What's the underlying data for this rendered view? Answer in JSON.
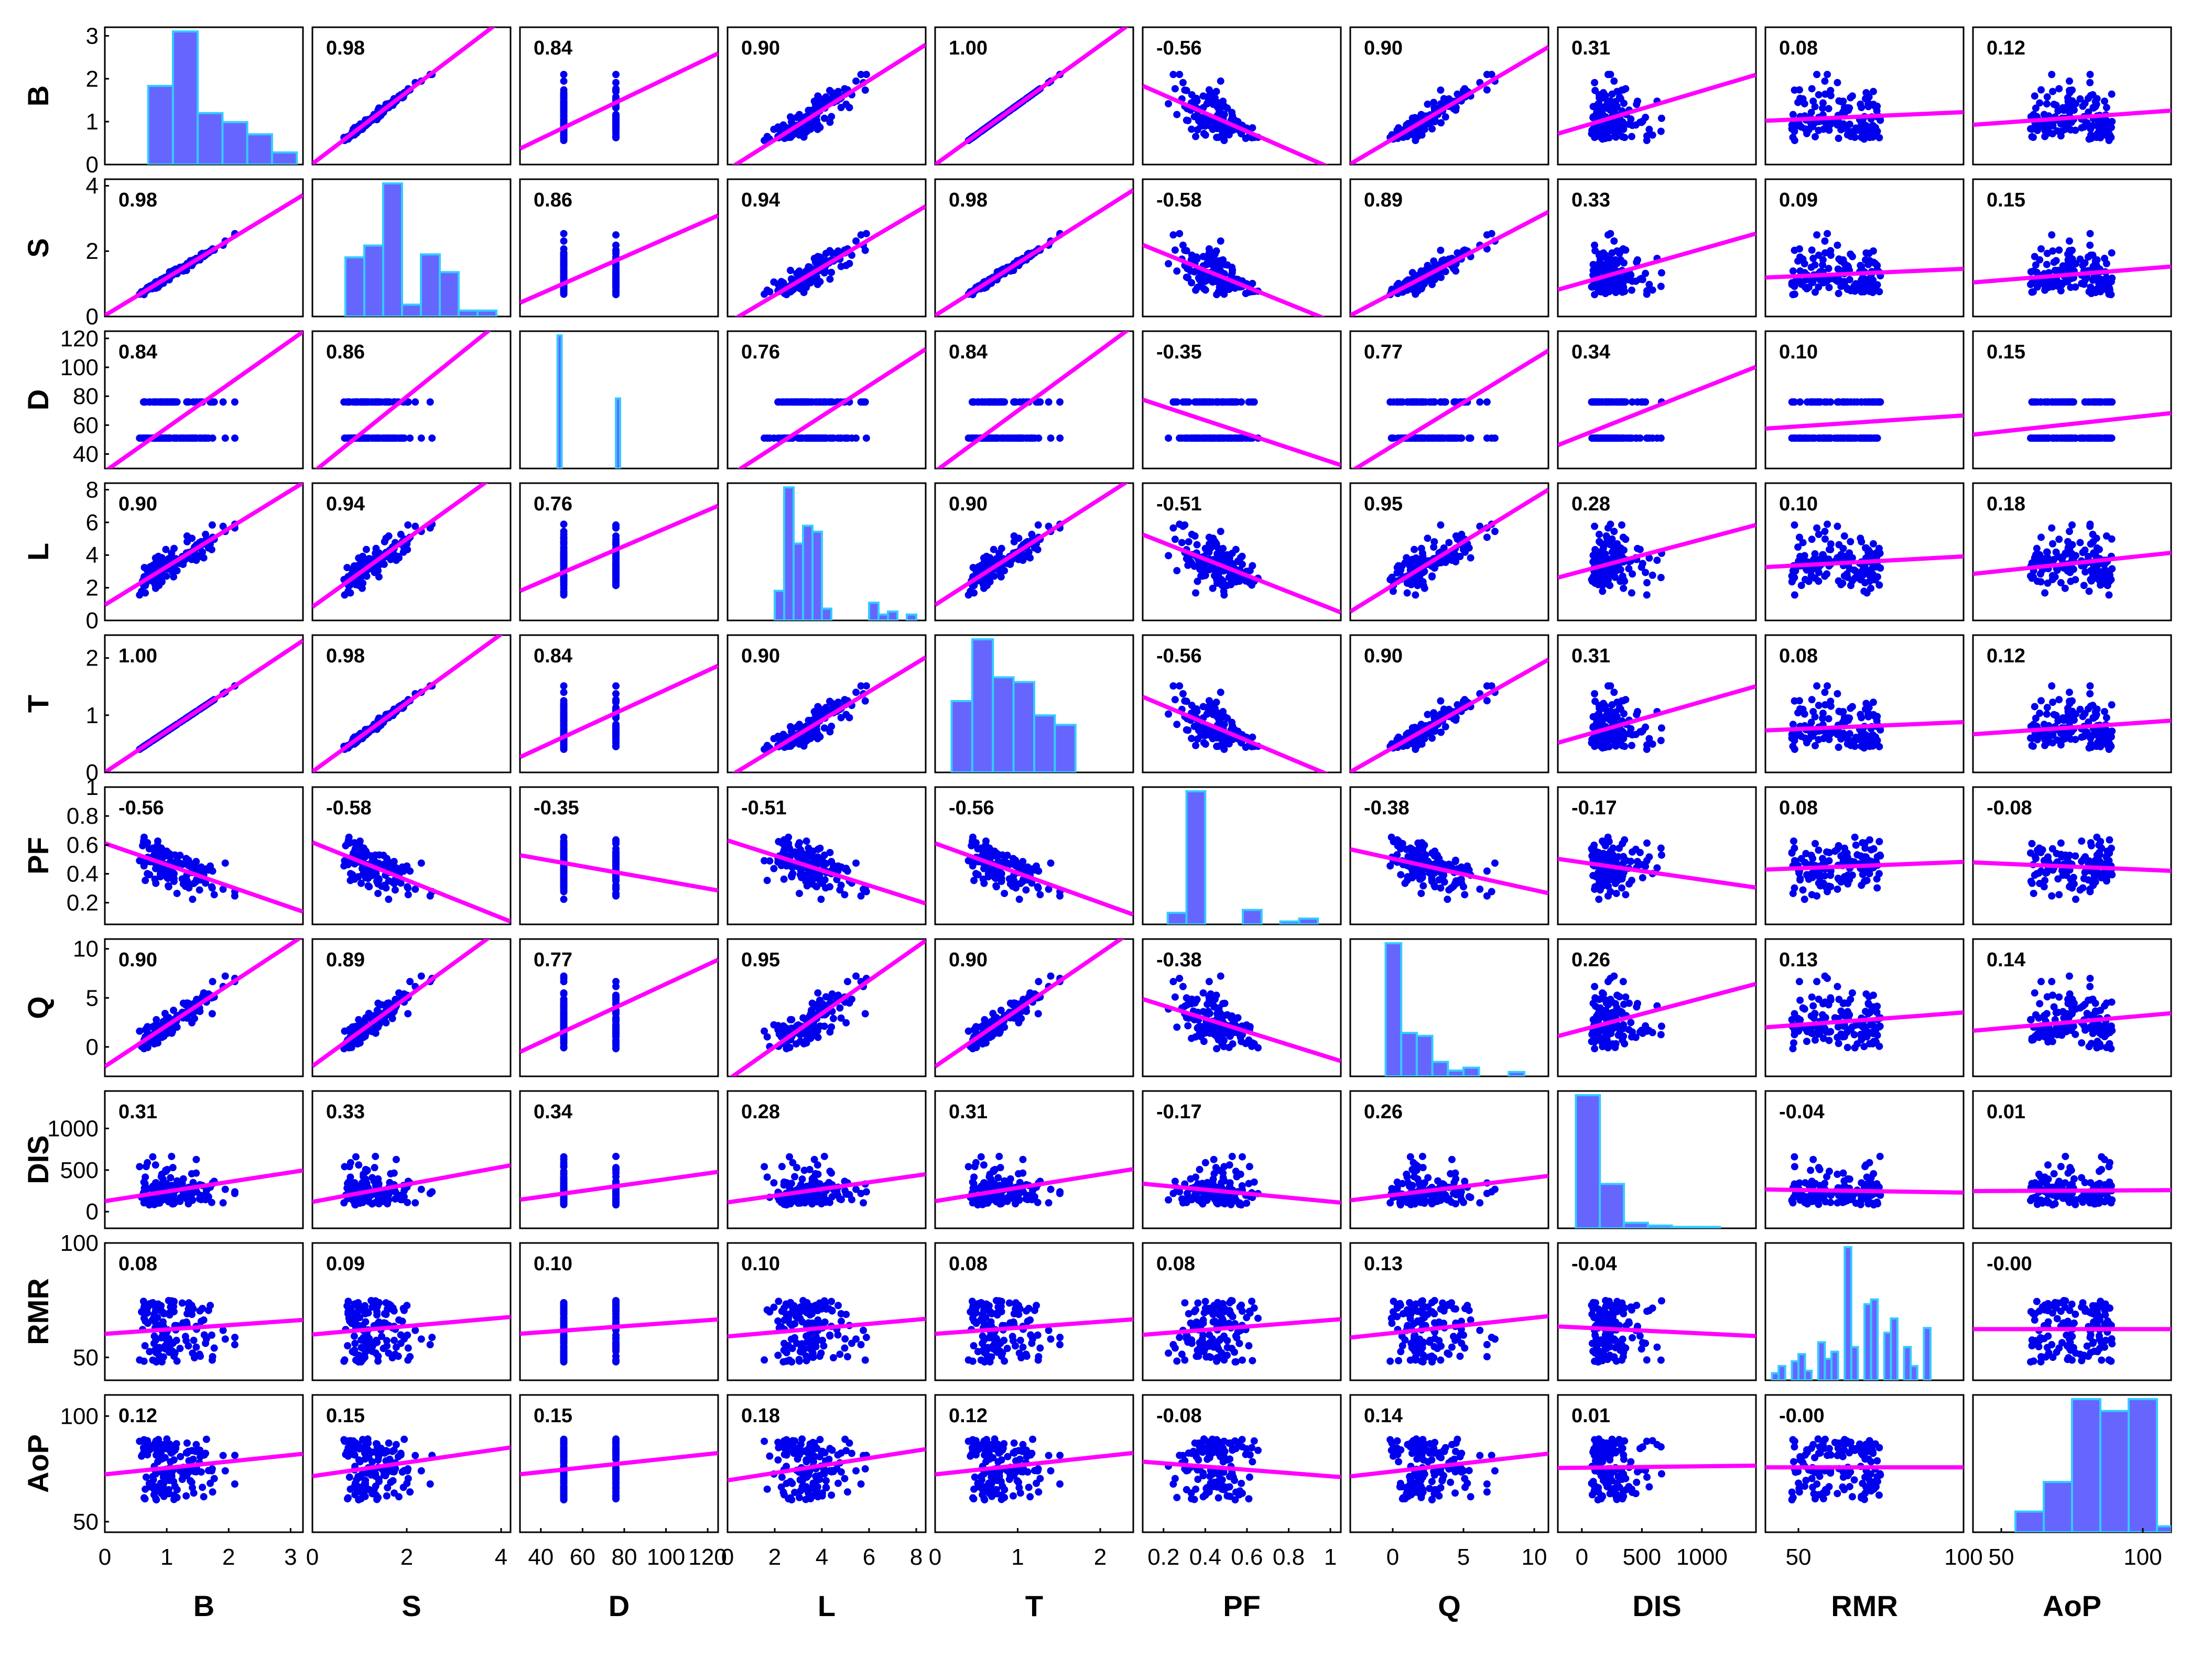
{
  "chart_data": {
    "type": "scatter-matrix",
    "description_of_panels": "off-diagonal: scatter with least-squares fit line and Pearson r; diagonal: histogram",
    "variables": [
      "B",
      "S",
      "D",
      "L",
      "T",
      "PF",
      "Q",
      "DIS",
      "RMR",
      "AoP"
    ],
    "x_axis": {
      "B": {
        "range": [
          0,
          3.2
        ],
        "ticks": [
          "0",
          "1",
          "2",
          "3"
        ],
        "tick_values": [
          0,
          1,
          2,
          3
        ]
      },
      "S": {
        "range": [
          0,
          4.2
        ],
        "ticks": [
          "0",
          "2",
          "4"
        ],
        "tick_values": [
          0,
          2,
          4
        ]
      },
      "D": {
        "range": [
          30,
          125
        ],
        "ticks": [
          "40",
          "60",
          "80",
          "100",
          "120"
        ],
        "tick_values": [
          40,
          60,
          80,
          100,
          120
        ]
      },
      "L": {
        "range": [
          0,
          8.4
        ],
        "ticks": [
          "0",
          "2",
          "4",
          "6",
          "8"
        ],
        "tick_values": [
          0,
          2,
          4,
          6,
          8
        ]
      },
      "T": {
        "range": [
          0,
          2.4
        ],
        "ticks": [
          "0",
          "1",
          "2"
        ],
        "tick_values": [
          0,
          1,
          2
        ]
      },
      "PF": {
        "range": [
          0.1,
          1.05
        ],
        "ticks": [
          "0.2",
          "0.4",
          "0.6",
          "0.8",
          "1"
        ],
        "tick_values": [
          0.2,
          0.4,
          0.6,
          0.8,
          1.0
        ]
      },
      "Q": {
        "range": [
          -3,
          11
        ],
        "ticks": [
          "0",
          "5",
          "10"
        ],
        "tick_values": [
          0,
          5,
          10
        ]
      },
      "DIS": {
        "range": [
          -200,
          1450
        ],
        "ticks": [
          "0",
          "500",
          "1000"
        ],
        "tick_values": [
          0,
          500,
          1000
        ]
      },
      "RMR": {
        "range": [
          40,
          100
        ],
        "ticks": [
          "50",
          "100"
        ],
        "tick_values": [
          50,
          100
        ]
      },
      "AoP": {
        "range": [
          40,
          110
        ],
        "ticks": [
          "50",
          "100"
        ],
        "tick_values": [
          50,
          100
        ]
      }
    },
    "y_axis": {
      "B": {
        "range": [
          0,
          3.2
        ],
        "ticks": [
          "0",
          "1",
          "2",
          "3"
        ],
        "tick_values": [
          0,
          1,
          2,
          3
        ]
      },
      "S": {
        "range": [
          0,
          4.2
        ],
        "ticks": [
          "0",
          "2",
          "4"
        ],
        "tick_values": [
          0,
          2,
          4
        ]
      },
      "D": {
        "range": [
          30,
          125
        ],
        "ticks": [
          "40",
          "60",
          "80",
          "100",
          "120"
        ],
        "tick_values": [
          40,
          60,
          80,
          100,
          120
        ]
      },
      "L": {
        "range": [
          0,
          8.4
        ],
        "ticks": [
          "0",
          "2",
          "4",
          "6",
          "8"
        ],
        "tick_values": [
          0,
          2,
          4,
          6,
          8
        ]
      },
      "T": {
        "range": [
          0,
          2.4
        ],
        "ticks": [
          "0",
          "1",
          "2"
        ],
        "tick_values": [
          0,
          1,
          2
        ]
      },
      "PF": {
        "range": [
          0.05,
          1.0
        ],
        "ticks": [
          "0.2",
          "0.4",
          "0.6",
          "0.8",
          "1"
        ],
        "tick_values": [
          0.2,
          0.4,
          0.6,
          0.8,
          1.0
        ]
      },
      "Q": {
        "range": [
          -3,
          11
        ],
        "ticks": [
          "0",
          "5",
          "10"
        ],
        "tick_values": [
          0,
          5,
          10
        ]
      },
      "DIS": {
        "range": [
          -200,
          1450
        ],
        "ticks": [
          "0",
          "500",
          "1000"
        ],
        "tick_values": [
          0,
          500,
          1000
        ]
      },
      "RMR": {
        "range": [
          40,
          100
        ],
        "ticks": [
          "50",
          "100"
        ],
        "tick_values": [
          50,
          100
        ]
      },
      "AoP": {
        "range": [
          45,
          110
        ],
        "ticks": [
          "50",
          "100"
        ],
        "tick_values": [
          50,
          100
        ]
      }
    },
    "correlations": [
      [
        "",
        "0.98",
        "0.84",
        "0.90",
        "1.00",
        "-0.56",
        "0.90",
        "0.31",
        "0.08",
        "0.12"
      ],
      [
        "0.98",
        "",
        "0.86",
        "0.94",
        "0.98",
        "-0.58",
        "0.89",
        "0.33",
        "0.09",
        "0.15"
      ],
      [
        "0.84",
        "0.86",
        "",
        "0.76",
        "0.84",
        "-0.35",
        "0.77",
        "0.34",
        "0.10",
        "0.15"
      ],
      [
        "0.90",
        "0.94",
        "0.76",
        "",
        "0.90",
        "-0.51",
        "0.95",
        "0.28",
        "0.10",
        "0.18"
      ],
      [
        "1.00",
        "0.98",
        "0.84",
        "0.90",
        "",
        "-0.56",
        "0.90",
        "0.31",
        "0.08",
        "0.12"
      ],
      [
        "-0.56",
        "-0.58",
        "-0.35",
        "-0.51",
        "-0.56",
        "",
        "-0.38",
        "-0.17",
        "0.08",
        "-0.08"
      ],
      [
        "0.90",
        "0.89",
        "0.77",
        "0.95",
        "0.90",
        "-0.38",
        "",
        "0.26",
        "0.13",
        "0.14"
      ],
      [
        "0.31",
        "0.33",
        "0.34",
        "0.28",
        "0.31",
        "-0.17",
        "0.26",
        "",
        "-0.04",
        "0.01"
      ],
      [
        "0.08",
        "0.09",
        "0.10",
        "0.10",
        "0.08",
        "0.08",
        "0.13",
        "-0.04",
        "",
        "-0.00"
      ],
      [
        "0.12",
        "0.15",
        "0.15",
        "0.18",
        "0.12",
        "-0.08",
        "0.14",
        "0.01",
        "-0.00",
        ""
      ]
    ],
    "histograms": {
      "B": {
        "edges": [
          0.7,
          1.1,
          1.5,
          1.9,
          2.3,
          2.7,
          3.1
        ],
        "counts": [
          52,
          88,
          34,
          28,
          20,
          8
        ]
      },
      "S": {
        "edges": [
          0.7,
          1.1,
          1.5,
          1.9,
          2.3,
          2.7,
          3.1,
          3.5,
          3.9
        ],
        "counts": [
          40,
          48,
          90,
          8,
          42,
          30,
          4,
          4
        ]
      },
      "D": {
        "edges": [
          48,
          50,
          52,
          74,
          76,
          78
        ],
        "counts": [
          95,
          0,
          0,
          0,
          50
        ]
      },
      "L": {
        "edges": [
          2.0,
          2.4,
          2.8,
          3.2,
          3.6,
          4.0,
          4.4,
          4.8,
          5.2,
          5.6,
          6.0,
          6.4,
          6.8,
          7.2,
          7.6,
          8.0
        ],
        "counts": [
          20,
          90,
          52,
          64,
          60,
          8,
          0,
          0,
          0,
          0,
          12,
          4,
          6,
          0,
          4
        ]
      },
      "T": {
        "edges": [
          0.2,
          0.45,
          0.7,
          0.95,
          1.2,
          1.45,
          1.7
        ],
        "counts": [
          30,
          56,
          40,
          38,
          24,
          20
        ]
      },
      "PF": {
        "edges": [
          0.22,
          0.31,
          0.4,
          0.49,
          0.58,
          0.67,
          0.76,
          0.85,
          0.94
        ],
        "counts": [
          8,
          92,
          0,
          0,
          10,
          0,
          2,
          4
        ]
      },
      "Q": {
        "edges": [
          -0.5,
          0.6,
          1.7,
          2.8,
          3.9,
          5.0,
          6.1,
          7.1,
          8.2,
          9.3
        ],
        "counts": [
          92,
          30,
          28,
          10,
          4,
          6,
          0,
          0,
          3
        ]
      },
      "DIS": {
        "edges": [
          -50,
          150,
          350,
          550,
          750,
          950,
          1150,
          1350
        ],
        "counts": [
          96,
          32,
          4,
          2,
          1,
          1,
          0
        ]
      },
      "RMR": {
        "edges": [
          42,
          44,
          46,
          48,
          50,
          52,
          54,
          56,
          58,
          60,
          62,
          64,
          66,
          68,
          70,
          72,
          74,
          76,
          78,
          80,
          82,
          84,
          86,
          88,
          90
        ],
        "counts": [
          3,
          6,
          0,
          8,
          11,
          4,
          0,
          16,
          9,
          12,
          0,
          56,
          14,
          0,
          32,
          34,
          0,
          20,
          26,
          0,
          14,
          6,
          0,
          22
        ]
      },
      "AoP": {
        "edges": [
          55,
          65,
          75,
          85,
          95,
          105,
          115
        ],
        "counts": [
          14,
          34,
          90,
          82,
          90,
          4
        ]
      }
    },
    "axis_labels": {
      "x": [
        "B",
        "S",
        "D",
        "L",
        "T",
        "PF",
        "Q",
        "DIS",
        "RMR",
        "AoP"
      ],
      "y": [
        "B",
        "S",
        "D",
        "L",
        "T",
        "PF",
        "Q",
        "DIS",
        "RMR",
        "AoP"
      ]
    },
    "colors": {
      "scatter": "#0000ee",
      "fit_line": "#ff00ff",
      "hist_fill": "#6666ff",
      "hist_edge": "#33ccff",
      "frame": "#000000"
    },
    "grid": false,
    "legend": "none"
  }
}
